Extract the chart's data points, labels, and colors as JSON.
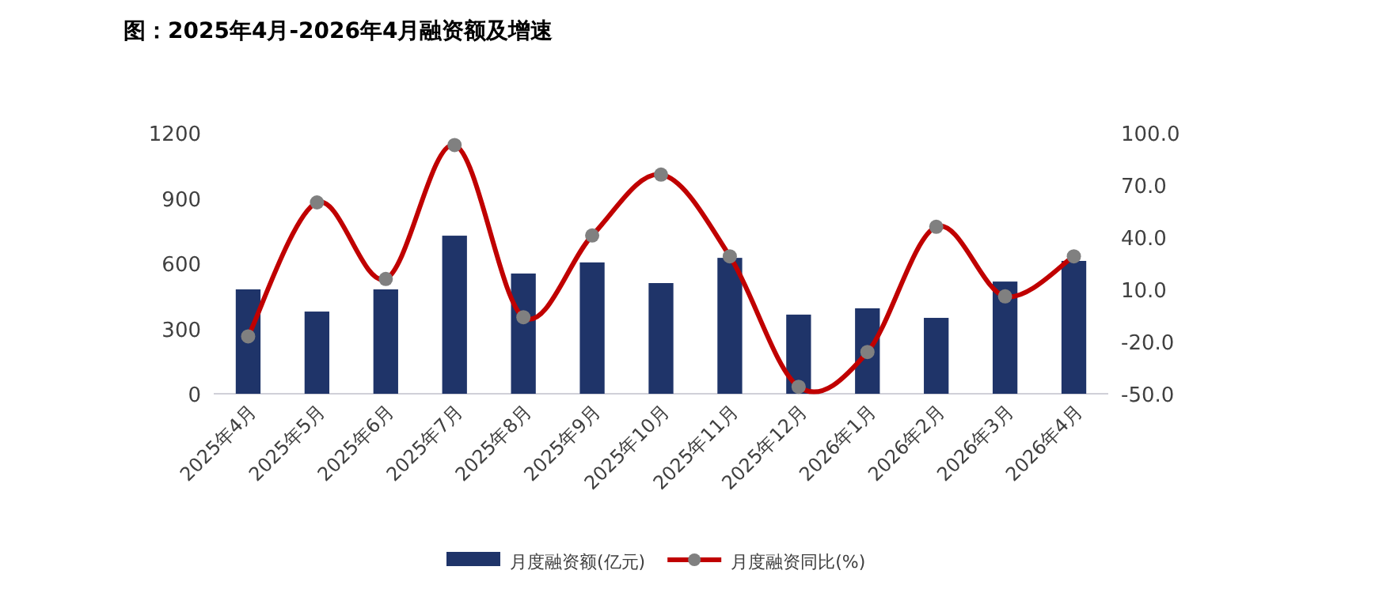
{
  "chart_data": {
    "type": "bar",
    "title": "图：2025年4月-2026年4月融资额及增速",
    "categories": [
      "2025年4月",
      "2025年5月",
      "2025年6月",
      "2025年7月",
      "2025年8月",
      "2025年9月",
      "2025年10月",
      "2025年11月",
      "2025年12月",
      "2026年1月",
      "2026年2月",
      "2026年3月",
      "2026年4月"
    ],
    "series": [
      {
        "name": "月度融资额(亿元)",
        "color": "#1f3469",
        "values": [
          480,
          378,
          480,
          727,
          553,
          604,
          509,
          625,
          364,
          393,
          349,
          516,
          611
        ]
      },
      {
        "name": "月度融资同比(%)",
        "type": "line",
        "axis": "y2",
        "color": "#c00000",
        "marker": "circle",
        "values": [
          -17,
          60,
          16,
          93,
          -6,
          41,
          76,
          29,
          -46,
          -26,
          46,
          6,
          29
        ]
      }
    ],
    "ylim": [
      0,
      1200
    ],
    "yticks": [
      0,
      300,
      600,
      900,
      1200
    ],
    "y2lim": [
      -50,
      100
    ],
    "y2ticks": [
      {
        "value": -50,
        "label": "-50.0"
      },
      {
        "value": -20,
        "label": "-20.0"
      },
      {
        "value": 10,
        "label": "10.0"
      },
      {
        "value": 40,
        "label": "40.0"
      },
      {
        "value": 70,
        "label": "70.0"
      },
      {
        "value": 100,
        "label": "100.0"
      }
    ],
    "legend": "bottom",
    "grid": false
  }
}
